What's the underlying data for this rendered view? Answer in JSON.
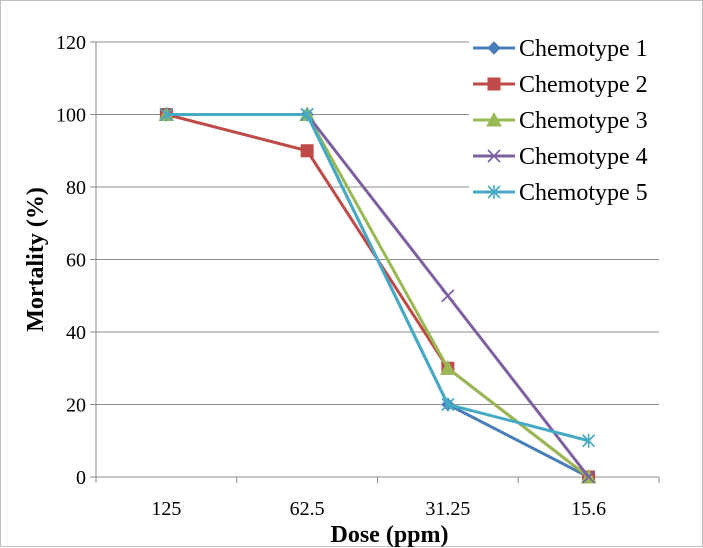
{
  "chart_data": {
    "type": "line",
    "title": "",
    "xlabel": "Dose (ppm)",
    "ylabel": "Mortality (%)",
    "categories": [
      "125",
      "62.5",
      "31.25",
      "15.6"
    ],
    "ylim": [
      0,
      120
    ],
    "yticks": [
      0,
      20,
      40,
      60,
      80,
      100,
      120
    ],
    "grid": "horizontal",
    "legend_position": "right-inside",
    "series": [
      {
        "name": "Chemotype 1",
        "values": [
          100,
          100,
          20,
          0
        ],
        "color": "#4a7ebb",
        "marker": "diamond"
      },
      {
        "name": "Chemotype 2",
        "values": [
          100,
          90,
          30,
          0
        ],
        "color": "#be4b48",
        "marker": "square"
      },
      {
        "name": "Chemotype 3",
        "values": [
          100,
          100,
          30,
          0
        ],
        "color": "#98b954",
        "marker": "triangle"
      },
      {
        "name": "Chemotype 4",
        "values": [
          100,
          100,
          50,
          0
        ],
        "color": "#7d60a0",
        "marker": "x"
      },
      {
        "name": "Chemotype 5",
        "values": [
          100,
          100,
          20,
          10
        ],
        "color": "#46aac5",
        "marker": "star"
      }
    ]
  }
}
